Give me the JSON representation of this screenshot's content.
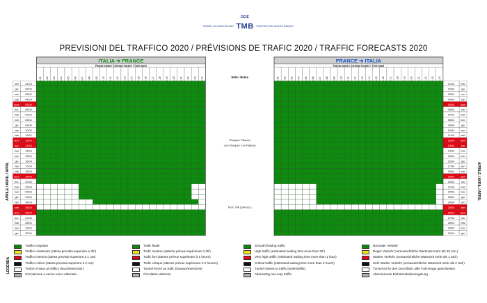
{
  "logo": {
    "geie": "GEIE",
    "tmb": "TMB",
    "left_text": "TUNNEL DU MONT BLANC",
    "right_text": "TRAFORO DEL MONTE BIANCO"
  },
  "title": "PREVISIONI DEL TRAFFICO 2020  /  PRÉVISIONS DE TRAFIC 2020  /  TRAFFIC FORECASTS 2020",
  "month_label": "APRILE / AVRIL / APRIL",
  "notes_header": "Note / Notes",
  "legend_title": "LEGENDA",
  "chart_data": {
    "type": "heatmap",
    "hours": [
      "00-01",
      "01-02",
      "02-03",
      "03-04",
      "04-05",
      "05-06",
      "06-07",
      "07-08",
      "08-09",
      "09-10",
      "10-11",
      "11-12",
      "12-13",
      "13-14",
      "14-15",
      "15-16",
      "16-17",
      "17-18",
      "18-19",
      "19-20",
      "20-21",
      "21-22",
      "22-23",
      "23-24"
    ],
    "band_label": "Fascia oraria  /  Créneau horaire  /  Time band",
    "panels": [
      {
        "id": "it-fr",
        "name": "ITALIA ➔ FRANCE",
        "header_color": "#1e8a1e",
        "special": [
          {
            "rows": [
              20,
              21,
              22
            ],
            "hours": [
              0,
              1,
              2,
              3,
              4,
              5,
              22,
              23
            ],
            "code": "W"
          },
          {
            "rows": [
              23
            ],
            "hours": [
              0,
              1,
              2,
              3,
              4,
              5,
              6,
              7,
              23
            ],
            "code": "W"
          },
          {
            "rows": [
              24
            ],
            "hours": [
              0,
              1,
              2,
              3,
              4,
              5,
              6,
              7,
              8,
              9,
              10,
              11,
              12,
              13,
              14,
              15,
              16,
              17,
              18,
              19,
              20,
              21,
              22,
              23
            ],
            "code": "W"
          }
        ]
      },
      {
        "id": "fr-it",
        "name": "FRANCE ➔ ITALIA",
        "header_color": "#1a55c9",
        "special": [
          {
            "rows": [
              20,
              21,
              22,
              23
            ],
            "hours": [
              0,
              1,
              2,
              3,
              4,
              5,
              23
            ],
            "code": "W"
          },
          {
            "rows": [
              24
            ],
            "hours": [
              0,
              1,
              2,
              3,
              4,
              5,
              6,
              7,
              8,
              9,
              10,
              11,
              12,
              13,
              14,
              15,
              16,
              17,
              18,
              19,
              20,
              21,
              22,
              23
            ],
            "code": "W"
          }
        ]
      }
    ],
    "days": [
      {
        "dow": "mer",
        "date": "01/04",
        "holiday": false
      },
      {
        "dow": "gio",
        "date": "02/04",
        "holiday": false
      },
      {
        "dow": "ven",
        "date": "03/04",
        "holiday": false
      },
      {
        "dow": "sab",
        "date": "04/04",
        "holiday": false
      },
      {
        "dow": "dom",
        "date": "05/04",
        "holiday": true
      },
      {
        "dow": "lun",
        "date": "06/04",
        "holiday": false
      },
      {
        "dow": "mar",
        "date": "07/04",
        "holiday": false
      },
      {
        "dow": "mer",
        "date": "08/04",
        "holiday": false
      },
      {
        "dow": "gio",
        "date": "09/04",
        "holiday": false
      },
      {
        "dow": "ven",
        "date": "10/04",
        "holiday": false
      },
      {
        "dow": "sab",
        "date": "11/04",
        "holiday": false
      },
      {
        "dow": "dom",
        "date": "12/04",
        "holiday": true
      },
      {
        "dow": "lun",
        "date": "13/04",
        "holiday": true
      },
      {
        "dow": "mar",
        "date": "14/04",
        "holiday": false
      },
      {
        "dow": "mer",
        "date": "15/04",
        "holiday": false
      },
      {
        "dow": "gio",
        "date": "16/04",
        "holiday": false
      },
      {
        "dow": "ven",
        "date": "17/04",
        "holiday": false
      },
      {
        "dow": "sab",
        "date": "18/04",
        "holiday": false
      },
      {
        "dow": "dom",
        "date": "19/04",
        "holiday": true
      },
      {
        "dow": "lun",
        "date": "20/04",
        "holiday": false
      },
      {
        "dow": "mar",
        "date": "21/04",
        "holiday": false
      },
      {
        "dow": "mer",
        "date": "22/04",
        "holiday": false
      },
      {
        "dow": "gio",
        "date": "23/04",
        "holiday": false
      },
      {
        "dow": "ven",
        "date": "24/04",
        "holiday": false
      },
      {
        "dow": "sab",
        "date": "25/04",
        "holiday": true
      },
      {
        "dow": "dom",
        "date": "26/04",
        "holiday": true
      },
      {
        "dow": "lun",
        "date": "27/04",
        "holiday": false
      },
      {
        "dow": "mar",
        "date": "28/04",
        "holiday": false
      },
      {
        "dow": "mer",
        "date": "29/04",
        "holiday": false
      },
      {
        "dow": "gio",
        "date": "30/04",
        "holiday": false
      }
    ],
    "notes": [
      {
        "row": 11,
        "lines": [
          "Pasqua / Pâques",
          "Lun.Pasqua / Lun.Pâques"
        ]
      },
      {
        "row": 24,
        "lines": [
          "Fest. ITA (Liberaz.)"
        ]
      }
    ],
    "colors": {
      "G": "#0e8a0e",
      "Y": "#f4e21a",
      "R": "#e30613",
      "K": "#111111",
      "W": "#ffffff",
      "A": "#b0b0b0",
      "holiday": "#e30613",
      "header_gray": "#cfcfcf",
      "grid": "#555555"
    },
    "legend": [
      {
        "lang": "it",
        "items": [
          {
            "code": "G",
            "label": "Traffico regolare"
          },
          {
            "code": "Y",
            "label": "Traffico sostenuto (attesa prevista superiore a 30')"
          },
          {
            "code": "R",
            "label": "Traffico intenso (attesa prevista superiore a 1 ora)"
          },
          {
            "code": "K",
            "label": "Traffico critico (attesa prevista superiore a 2 ore)"
          },
          {
            "code": "W",
            "label": "Traforo chiuso al traffico (lavori/esercitaz.)"
          },
          {
            "code": "A",
            "label": "Circolazione a senso unico alternato"
          }
        ]
      },
      {
        "lang": "fr",
        "items": [
          {
            "code": "G",
            "label": "Trafic fluide"
          },
          {
            "code": "Y",
            "label": "Trafic soutenu (attente prévue supérieure à 30')"
          },
          {
            "code": "R",
            "label": "Trafic fort (attente prévue supérieure à 1 heure)"
          },
          {
            "code": "K",
            "label": "Trafic critique (attente prévue supérieure à 2 heures)"
          },
          {
            "code": "W",
            "label": "Tunnel fermé au trafic (travaux/exercices)"
          },
          {
            "code": "A",
            "label": "Circulation alternée"
          }
        ]
      },
      {
        "lang": "en",
        "items": [
          {
            "code": "G",
            "label": "Smooth flowing traffic"
          },
          {
            "code": "Y",
            "label": "High traffic (estimated waiting time more than 30')"
          },
          {
            "code": "R",
            "label": "Very high traffic (estimated waiting time more than 1 hour)"
          },
          {
            "code": "K",
            "label": "Critical traffic (estimated waiting time more than 2 hours)"
          },
          {
            "code": "W",
            "label": "Tunnel closed to traffic (works/drills)"
          },
          {
            "code": "A",
            "label": "Alternating one-way traffic"
          }
        ]
      },
      {
        "lang": "de",
        "items": [
          {
            "code": "G",
            "label": "Normaler Verkehr"
          },
          {
            "code": "Y",
            "label": "Reger Verkehr (voraussichtliche Wartezeit mehr als 30 min.)"
          },
          {
            "code": "R",
            "label": "Starker Verkehr (voraussichtliche Wartezeit mehr als 1 Std.)"
          },
          {
            "code": "K",
            "label": "Sehr starker Verkehr (voraussichtliche Wartezeit mehr als 2 Std.)"
          },
          {
            "code": "W",
            "label": "Tunnel ist für den Durchfahrt aller Fahrzeuge geschlossen"
          },
          {
            "code": "A",
            "label": "Alternierende Einbahnstraßenregelung"
          }
        ]
      }
    ]
  }
}
